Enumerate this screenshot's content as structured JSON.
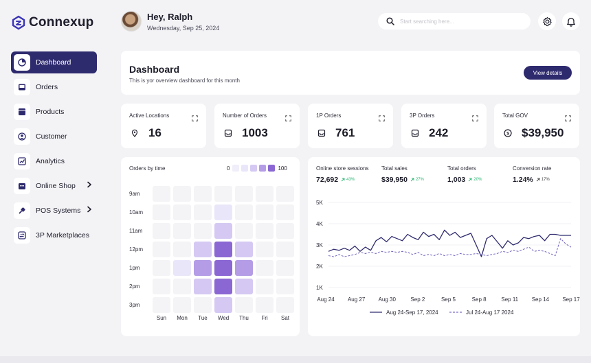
{
  "brand": {
    "name": "Connexup"
  },
  "header": {
    "greeting": "Hey, Ralph",
    "date": "Wednesday, Sep 25, 2024",
    "search_placeholder": "Start searching here..."
  },
  "sidebar": {
    "items": [
      {
        "label": "Dashboard",
        "icon": "dashboard-icon",
        "active": true,
        "has_chevron": false
      },
      {
        "label": "Orders",
        "icon": "orders-icon",
        "active": false,
        "has_chevron": false
      },
      {
        "label": "Products",
        "icon": "products-icon",
        "active": false,
        "has_chevron": false
      },
      {
        "label": "Customer",
        "icon": "customer-icon",
        "active": false,
        "has_chevron": false
      },
      {
        "label": "Analytics",
        "icon": "analytics-icon",
        "active": false,
        "has_chevron": false
      },
      {
        "label": "Online Shop",
        "icon": "shop-icon",
        "active": false,
        "has_chevron": true
      },
      {
        "label": "POS Systems",
        "icon": "pos-icon",
        "active": false,
        "has_chevron": true
      },
      {
        "label": "3P Marketplaces",
        "icon": "marketplace-icon",
        "active": false,
        "has_chevron": false
      }
    ]
  },
  "overview": {
    "title": "Dashboard",
    "subtitle": "This is yor overview dashboard for this month",
    "button_label": "View details"
  },
  "stats": [
    {
      "label": "Active Locations",
      "value": "16",
      "icon": "location-icon"
    },
    {
      "label": "Number of Orders",
      "value": "1003",
      "icon": "inbox-icon"
    },
    {
      "label": "1P Orders",
      "value": "761",
      "icon": "inbox-icon"
    },
    {
      "label": "3P Orders",
      "value": "242",
      "icon": "inbox-icon"
    },
    {
      "label": "Total GOV",
      "value": "$39,950",
      "icon": "dollar-icon"
    }
  ],
  "heatmap": {
    "title": "Orders by time",
    "legend_min": "0",
    "legend_max": "100",
    "rows": [
      "9am",
      "10am",
      "11am",
      "12pm",
      "1pm",
      "2pm",
      "3pm"
    ],
    "cols": [
      "Sun",
      "Mon",
      "Tue",
      "Wed",
      "Thu",
      "Fri",
      "Sat"
    ],
    "levels": [
      [
        0,
        0,
        0,
        0,
        0,
        0,
        0
      ],
      [
        0,
        0,
        0,
        1,
        0,
        0,
        0
      ],
      [
        0,
        0,
        0,
        2,
        0,
        0,
        0
      ],
      [
        0,
        0,
        2,
        4,
        2,
        0,
        0
      ],
      [
        0,
        1,
        3,
        4,
        3,
        0,
        0
      ],
      [
        0,
        0,
        2,
        4,
        2,
        0,
        0
      ],
      [
        0,
        0,
        0,
        2,
        0,
        0,
        0
      ]
    ],
    "colors": [
      "#f4f4f6",
      "#eae6fa",
      "#d5c9f3",
      "#b49de6",
      "#8b67d3"
    ]
  },
  "kpis": [
    {
      "label": "Online store sessions",
      "value": "72,692",
      "delta": "43%",
      "positive": true
    },
    {
      "label": "Total sales",
      "value": "$39,950",
      "delta": "27%",
      "positive": true
    },
    {
      "label": "Total orders",
      "value": "1,003",
      "delta": "20%",
      "positive": true
    },
    {
      "label": "Conversion rate",
      "value": "1.24%",
      "delta": "17%",
      "positive": false
    }
  ],
  "chart_data": {
    "type": "line",
    "y_ticks": [
      "5K",
      "4K",
      "3K",
      "2K",
      "1K"
    ],
    "ylim": [
      1000,
      5000
    ],
    "x_labels": [
      "Aug 24",
      "Aug 27",
      "Aug 30",
      "Sep 2",
      "Sep 5",
      "Sep 8",
      "Sep 11",
      "Sep 14",
      "Sep 17"
    ],
    "series": [
      {
        "name": "Aug 24-Sep 17, 2024",
        "style": "solid",
        "values": [
          2700,
          2800,
          2750,
          2850,
          2750,
          2950,
          2700,
          2900,
          2750,
          3200,
          3350,
          3150,
          3400,
          3300,
          3200,
          3500,
          3350,
          3250,
          3600,
          3400,
          3500,
          3250,
          3700,
          3450,
          3600,
          3350,
          3450,
          3550,
          3000,
          2450,
          3300,
          3450,
          3150,
          2850,
          3200,
          3000,
          3100,
          3350,
          3300,
          3400,
          3450,
          3200,
          3500,
          3500,
          3450,
          3450,
          3450
        ]
      },
      {
        "name": "Jul 24-Aug 17 2024",
        "style": "dashed",
        "values": [
          2500,
          2450,
          2550,
          2450,
          2500,
          2550,
          2650,
          2600,
          2650,
          2600,
          2700,
          2650,
          2700,
          2650,
          2700,
          2650,
          2550,
          2650,
          2500,
          2550,
          2500,
          2600,
          2500,
          2550,
          2500,
          2600,
          2550,
          2550,
          2600,
          2550,
          2500,
          2550,
          2600,
          2700,
          2650,
          2750,
          2700,
          2800,
          2900,
          2700,
          2750,
          2700,
          2600,
          2500,
          3300,
          3050,
          2900
        ]
      }
    ]
  }
}
